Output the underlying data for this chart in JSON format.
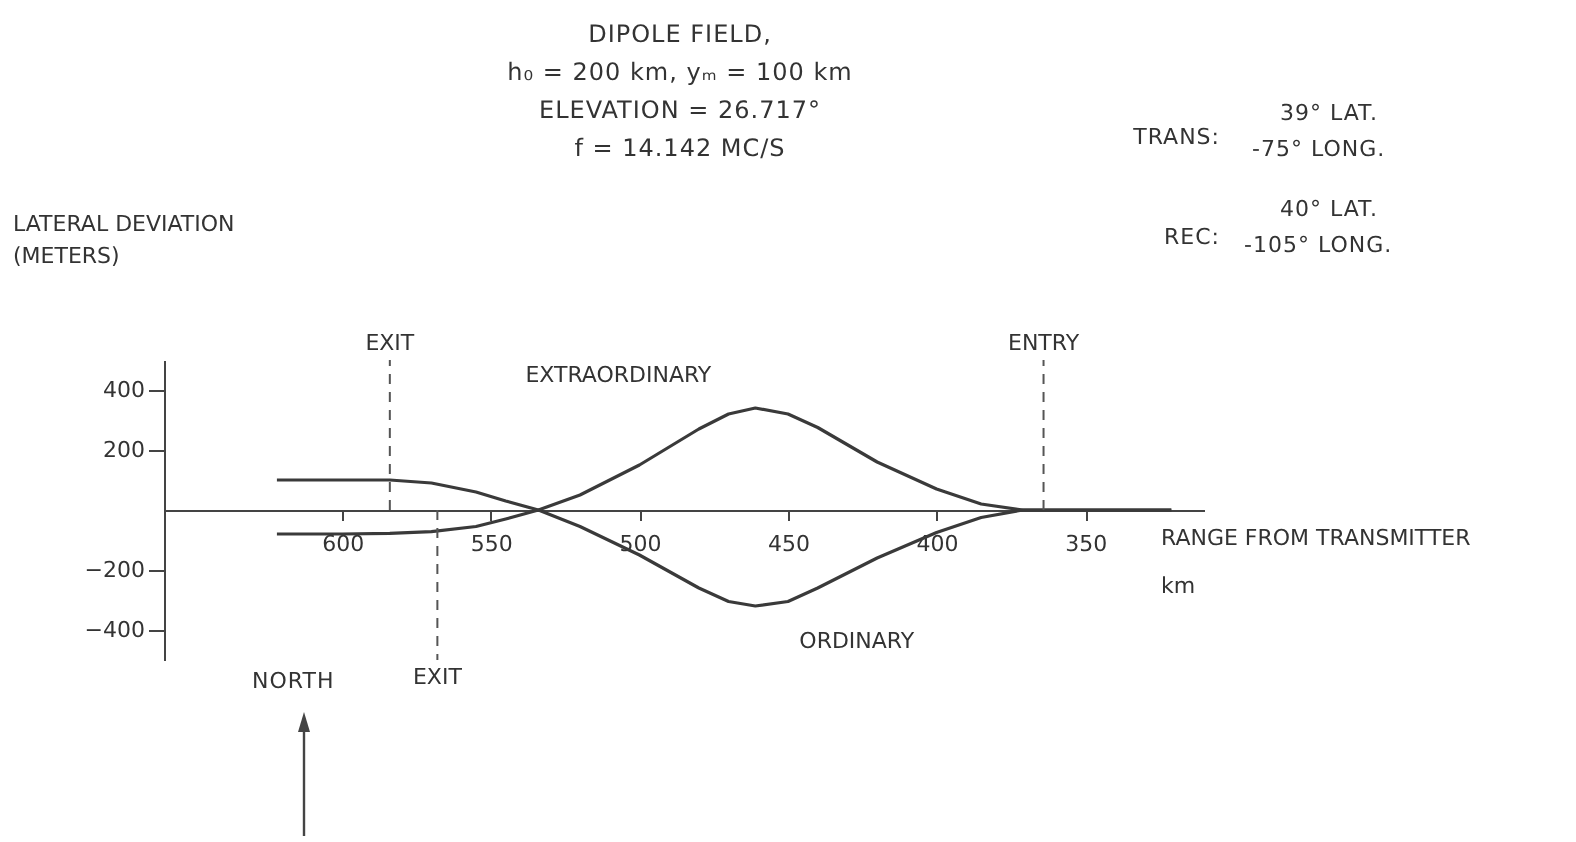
{
  "chart_data": {
    "type": "line",
    "title": "DIPOLE FIELD,",
    "subtitle": [
      "h₀ = 200 km,   yₘ = 100 km",
      "ELEVATION = 26.717°",
      "f = 14.142 MC/S"
    ],
    "xlabel": "RANGE FROM TRANSMITTER\nkm",
    "ylabel": "LATERAL DEVIATION\n(METERS)",
    "annotations": [
      "TRANS:",
      "39° LAT.",
      "-75° LONG.",
      "REC:",
      "40° LAT.",
      "-105° LONG.",
      "NORTH"
    ],
    "x": [
      622,
      600,
      584,
      570,
      555,
      545,
      534,
      520,
      500,
      480,
      470,
      461,
      450,
      440,
      420,
      400,
      385,
      371,
      350,
      321
    ],
    "series": [
      {
        "name": "EXTRAORDINARY",
        "color": "#3a3a3a",
        "values": [
          -80,
          -80,
          -78,
          -72,
          -55,
          -30,
          0,
          50,
          150,
          270,
          320,
          340,
          320,
          275,
          160,
          70,
          20,
          0,
          0,
          0
        ]
      },
      {
        "name": "ORDINARY",
        "color": "#3a3a3a",
        "values": [
          100,
          100,
          100,
          90,
          60,
          30,
          0,
          -55,
          -150,
          -260,
          -305,
          -320,
          -305,
          -260,
          -160,
          -75,
          -25,
          0,
          0,
          0
        ]
      }
    ],
    "ref_lines": [
      {
        "axis": "x",
        "value": 584,
        "label": "EXIT"
      },
      {
        "axis": "x",
        "value": 568,
        "label": "EXIT"
      },
      {
        "axis": "x",
        "value": 364,
        "label": "ENTRY"
      }
    ],
    "xlim": [
      660,
      310
    ],
    "ylim": [
      -500,
      500
    ],
    "xticks": [
      600,
      550,
      500,
      450,
      400,
      350
    ],
    "yticks": [
      -400,
      -200,
      200,
      400
    ],
    "grid": false,
    "line_style": "solid",
    "marker": "none"
  }
}
